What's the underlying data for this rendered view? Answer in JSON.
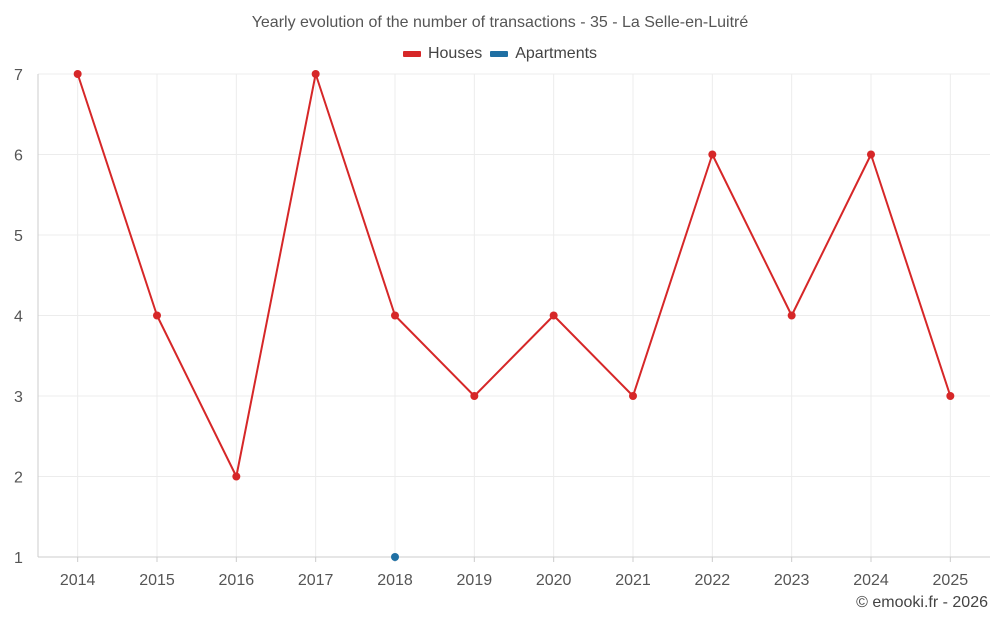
{
  "chart_data": {
    "type": "line",
    "title": "Yearly evolution of the number of transactions - 35 - La Selle-en-Luitré",
    "categories": [
      "2014",
      "2015",
      "2016",
      "2017",
      "2018",
      "2019",
      "2020",
      "2021",
      "2022",
      "2023",
      "2024",
      "2025"
    ],
    "series": [
      {
        "name": "Houses",
        "color": "#d62728",
        "values": [
          7,
          4,
          2,
          7,
          4,
          3,
          4,
          3,
          6,
          4,
          6,
          3
        ]
      },
      {
        "name": "Apartments",
        "color": "#1f6fa3",
        "values": [
          null,
          null,
          null,
          null,
          1,
          null,
          null,
          null,
          null,
          null,
          null,
          null
        ]
      }
    ],
    "ylim": [
      1,
      7
    ],
    "yticks": [
      1,
      2,
      3,
      4,
      5,
      6,
      7
    ],
    "grid": true,
    "legend_position": "top-center",
    "xlabel": "",
    "ylabel": ""
  },
  "credit": "© emooki.fr - 2026"
}
